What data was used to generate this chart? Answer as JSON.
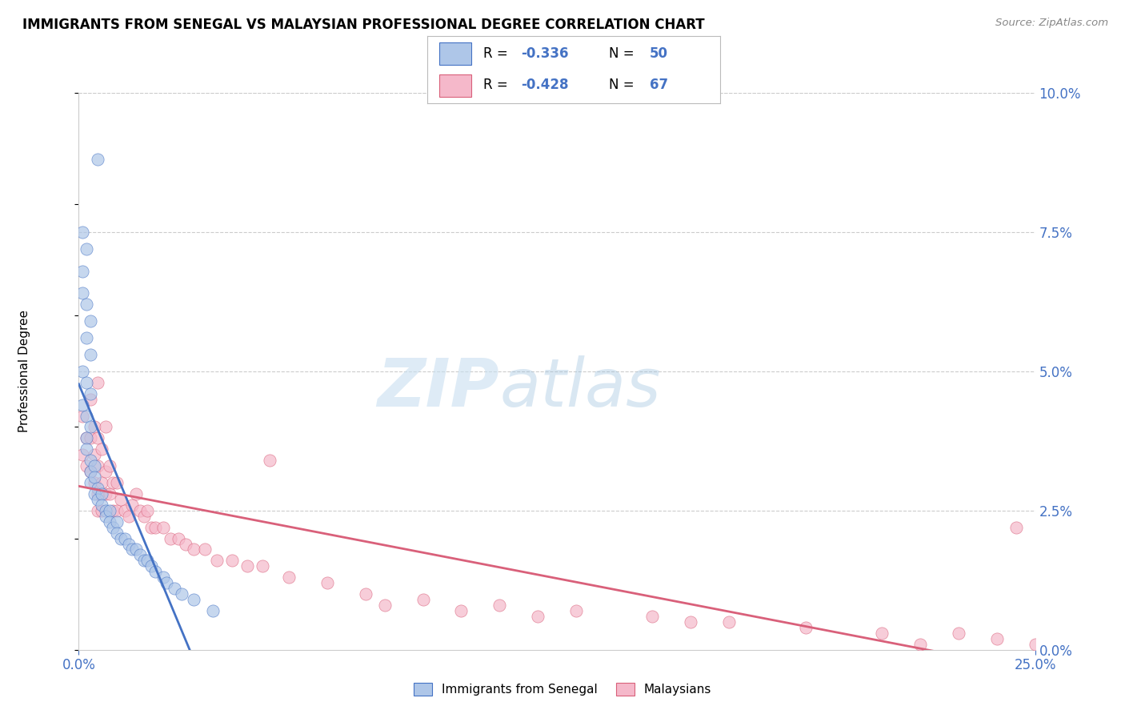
{
  "title": "IMMIGRANTS FROM SENEGAL VS MALAYSIAN PROFESSIONAL DEGREE CORRELATION CHART",
  "source": "Source: ZipAtlas.com",
  "ylabel": "Professional Degree",
  "legend_label_1": "Immigrants from Senegal",
  "legend_label_2": "Malaysians",
  "color_blue": "#aec6e8",
  "color_pink": "#f5b8ca",
  "color_blue_dark": "#4472c4",
  "color_pink_dark": "#d9607a",
  "watermark_zip": "ZIP",
  "watermark_atlas": "atlas",
  "xmin": 0.0,
  "xmax": 0.25,
  "ymin": 0.0,
  "ymax": 0.1,
  "blue_x": [
    0.005,
    0.001,
    0.002,
    0.001,
    0.001,
    0.002,
    0.003,
    0.002,
    0.003,
    0.001,
    0.002,
    0.003,
    0.001,
    0.002,
    0.003,
    0.002,
    0.002,
    0.003,
    0.003,
    0.004,
    0.003,
    0.004,
    0.005,
    0.004,
    0.005,
    0.006,
    0.006,
    0.007,
    0.007,
    0.008,
    0.008,
    0.009,
    0.01,
    0.01,
    0.011,
    0.012,
    0.013,
    0.014,
    0.015,
    0.016,
    0.017,
    0.018,
    0.019,
    0.02,
    0.022,
    0.023,
    0.025,
    0.027,
    0.03,
    0.035
  ],
  "blue_y": [
    0.088,
    0.075,
    0.072,
    0.068,
    0.064,
    0.062,
    0.059,
    0.056,
    0.053,
    0.05,
    0.048,
    0.046,
    0.044,
    0.042,
    0.04,
    0.038,
    0.036,
    0.034,
    0.032,
    0.033,
    0.03,
    0.031,
    0.029,
    0.028,
    0.027,
    0.028,
    0.026,
    0.025,
    0.024,
    0.025,
    0.023,
    0.022,
    0.023,
    0.021,
    0.02,
    0.02,
    0.019,
    0.018,
    0.018,
    0.017,
    0.016,
    0.016,
    0.015,
    0.014,
    0.013,
    0.012,
    0.011,
    0.01,
    0.009,
    0.007
  ],
  "pink_x": [
    0.001,
    0.002,
    0.001,
    0.002,
    0.003,
    0.003,
    0.003,
    0.004,
    0.004,
    0.004,
    0.005,
    0.005,
    0.005,
    0.005,
    0.006,
    0.006,
    0.006,
    0.007,
    0.007,
    0.008,
    0.008,
    0.009,
    0.009,
    0.01,
    0.01,
    0.011,
    0.012,
    0.013,
    0.014,
    0.015,
    0.016,
    0.017,
    0.018,
    0.019,
    0.02,
    0.022,
    0.024,
    0.026,
    0.028,
    0.03,
    0.033,
    0.036,
    0.04,
    0.044,
    0.048,
    0.055,
    0.065,
    0.075,
    0.09,
    0.11,
    0.13,
    0.15,
    0.17,
    0.19,
    0.21,
    0.23,
    0.24,
    0.005,
    0.007,
    0.05,
    0.08,
    0.1,
    0.12,
    0.16,
    0.22,
    0.245,
    0.25
  ],
  "pink_y": [
    0.042,
    0.038,
    0.035,
    0.033,
    0.045,
    0.038,
    0.032,
    0.04,
    0.035,
    0.03,
    0.038,
    0.033,
    0.028,
    0.025,
    0.036,
    0.03,
    0.025,
    0.032,
    0.028,
    0.033,
    0.028,
    0.03,
    0.025,
    0.03,
    0.025,
    0.027,
    0.025,
    0.024,
    0.026,
    0.028,
    0.025,
    0.024,
    0.025,
    0.022,
    0.022,
    0.022,
    0.02,
    0.02,
    0.019,
    0.018,
    0.018,
    0.016,
    0.016,
    0.015,
    0.015,
    0.013,
    0.012,
    0.01,
    0.009,
    0.008,
    0.007,
    0.006,
    0.005,
    0.004,
    0.003,
    0.003,
    0.002,
    0.048,
    0.04,
    0.034,
    0.008,
    0.007,
    0.006,
    0.005,
    0.001,
    0.022,
    0.001
  ]
}
